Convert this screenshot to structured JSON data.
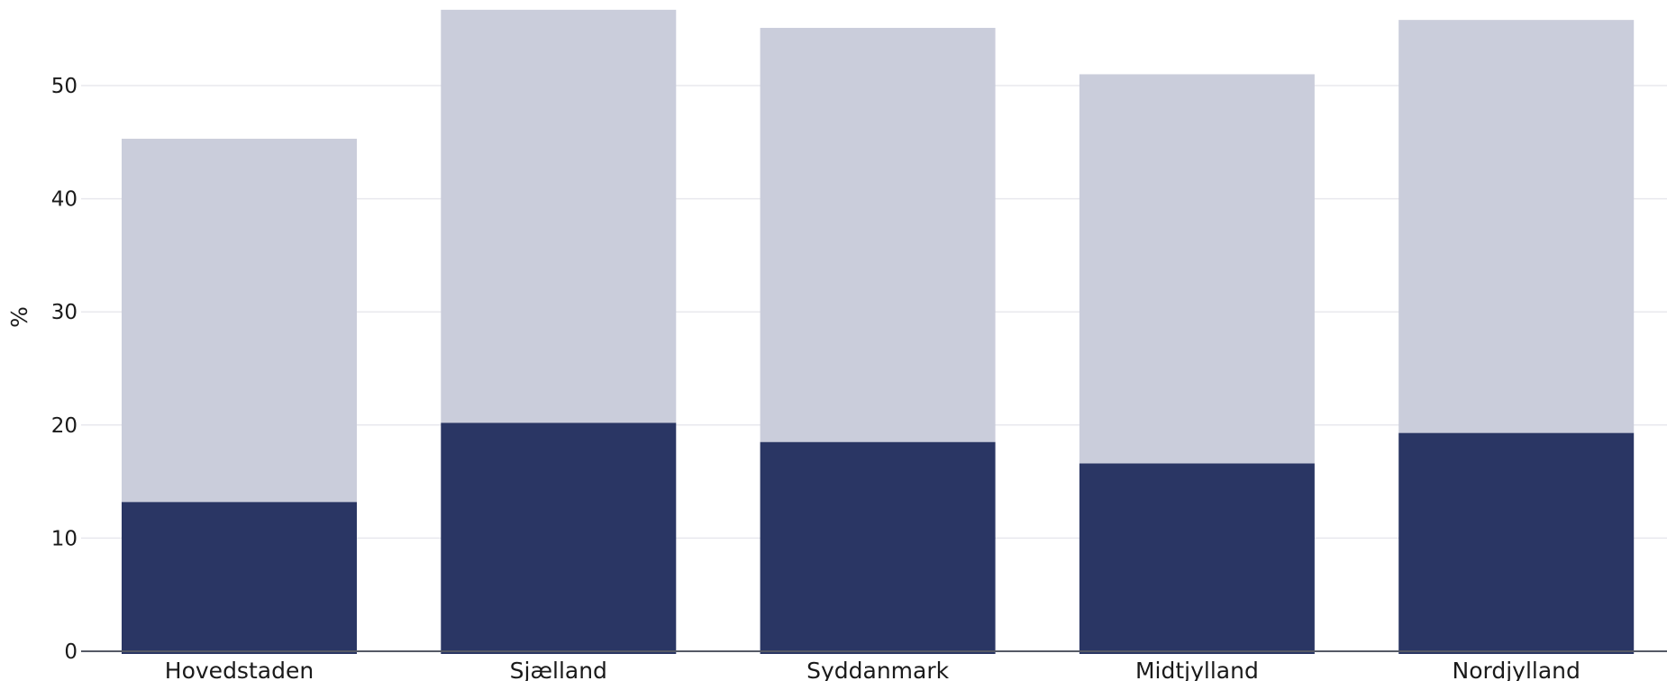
{
  "chart_data": {
    "type": "bar",
    "stacked": true,
    "categories": [
      "Hovedstaden",
      "Sjælland",
      "Syddanmark",
      "Midtjylland",
      "Nordjylland"
    ],
    "series": [
      {
        "values": [
          13.2,
          20.2,
          18.5,
          16.6,
          19.3
        ],
        "color": "#2a3664"
      },
      {
        "values": [
          32.1,
          36.5,
          36.6,
          34.4,
          36.5
        ],
        "color": "#cacddb"
      }
    ],
    "xlabel": "",
    "ylabel": "%",
    "ylim": [
      0,
      57
    ],
    "yticks": [
      0,
      10,
      20,
      30,
      40,
      50
    ],
    "ytick_labels": [
      "0",
      "10",
      "20",
      "30",
      "40",
      "50"
    ],
    "grid": true,
    "gridline_color": "#e8e8ee",
    "axis_color": "#555a66"
  }
}
